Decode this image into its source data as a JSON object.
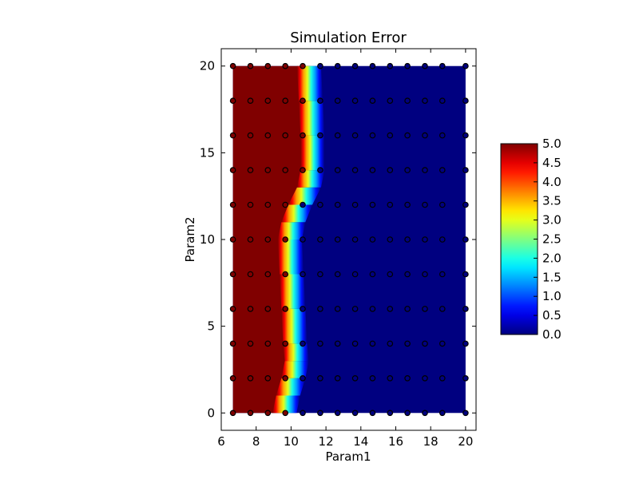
{
  "chart_data": {
    "type": "heatmap",
    "title": "Simulation Error",
    "xlabel": "Param1",
    "ylabel": "Param2",
    "xlim": [
      6,
      20.6
    ],
    "ylim": [
      -1,
      21
    ],
    "x_ticks": [
      6,
      8,
      10,
      12,
      14,
      16,
      18,
      20
    ],
    "y_ticks": [
      0,
      5,
      10,
      15,
      20
    ],
    "colormap": "jet",
    "colorbar": {
      "range": [
        0.0,
        5.0
      ],
      "ticks": [
        "0.0",
        "0.5",
        "1.0",
        "1.5",
        "2.0",
        "2.5",
        "3.0",
        "3.5",
        "4.0",
        "4.5",
        "5.0"
      ]
    },
    "field_domain": {
      "x": [
        6.67,
        20
      ],
      "y": [
        0,
        20
      ]
    },
    "param1_samples": [
      6.67,
      7.67,
      8.67,
      9.67,
      10.67,
      11.67,
      12.67,
      13.67,
      14.67,
      15.67,
      16.67,
      17.67,
      18.67,
      20.0
    ],
    "param2_samples": [
      0,
      2,
      4,
      6,
      8,
      10,
      12,
      14,
      16,
      18,
      20
    ],
    "transition_boundary": [
      {
        "param2": 0,
        "param1": 9.7
      },
      {
        "param2": 1,
        "param1": 9.9
      },
      {
        "param2": 2,
        "param1": 10.2
      },
      {
        "param2": 3,
        "param1": 10.4
      },
      {
        "param2": 4,
        "param1": 10.3
      },
      {
        "param2": 6,
        "param1": 10.2
      },
      {
        "param2": 8,
        "param1": 10.1
      },
      {
        "param2": 10,
        "param1": 10.0
      },
      {
        "param2": 11,
        "param1": 10.2
      },
      {
        "param2": 12,
        "param1": 10.6
      },
      {
        "param2": 13,
        "param1": 11.1
      },
      {
        "param2": 14,
        "param1": 11.3
      },
      {
        "param2": 16,
        "param1": 11.3
      },
      {
        "param2": 18,
        "param1": 11.2
      },
      {
        "param2": 20,
        "param1": 11.1
      }
    ],
    "error_left_of_boundary": 5.0,
    "error_right_of_boundary": 0.0,
    "grid": false
  }
}
